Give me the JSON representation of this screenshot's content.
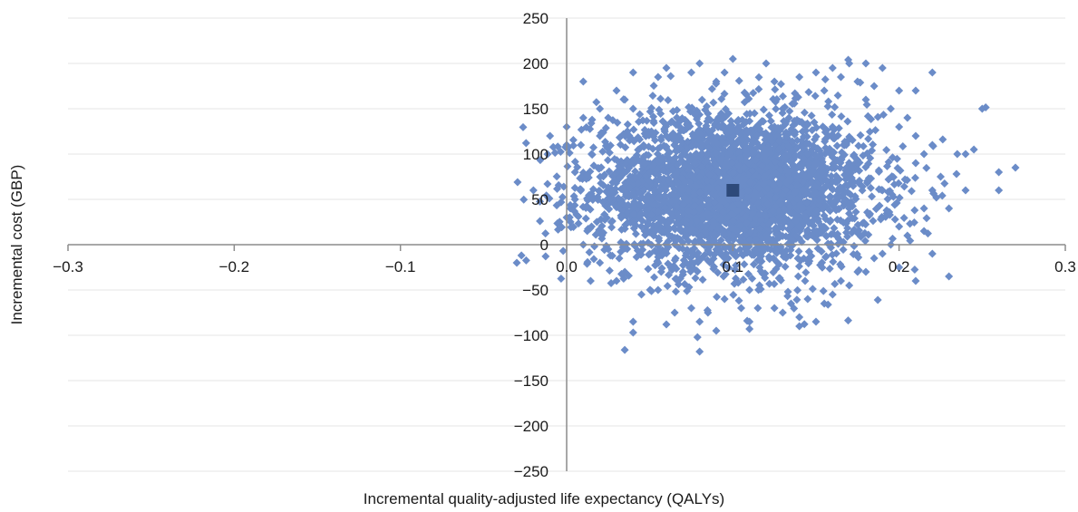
{
  "chart_data": {
    "type": "scatter",
    "title": "",
    "xlabel": "Incremental quality-adjusted life expectancy (QALYs)",
    "ylabel": "Incremental cost (GBP)",
    "xlim": [
      -0.3,
      0.3
    ],
    "ylim": [
      -250,
      250
    ],
    "x_ticks": [
      -0.3,
      -0.2,
      -0.1,
      0.0,
      0.1,
      0.2,
      0.3
    ],
    "x_tick_labels": [
      "−0.3",
      "−0.2",
      "−0.1",
      "0.0",
      "0.1",
      "0.2",
      "0.3"
    ],
    "y_ticks": [
      250,
      200,
      150,
      100,
      50,
      0,
      -50,
      -100,
      -150,
      -200,
      -250
    ],
    "y_tick_labels": [
      "250",
      "200",
      "150",
      "100",
      "50",
      "0",
      "−50",
      "−100",
      "−150",
      "−200",
      "−250"
    ],
    "grid": true,
    "legend": "none",
    "colors": {
      "simulations": "#6b8cc8",
      "mean": "#2e4a7a",
      "axis": "#8c8c8c",
      "grid": "#e6e6e6"
    },
    "series": [
      {
        "marker": "diamond",
        "points": [
          [
            0.1,
            65
          ],
          [
            0.12,
            100
          ],
          [
            0.08,
            40
          ],
          [
            0.06,
            120
          ],
          [
            0.14,
            20
          ],
          [
            0.1,
            10
          ],
          [
            0.09,
            180
          ],
          [
            0.11,
            -50
          ],
          [
            0.13,
            150
          ],
          [
            0.07,
            -30
          ],
          [
            0.15,
            90
          ],
          [
            0.05,
            70
          ],
          [
            0.04,
            150
          ],
          [
            0.16,
            130
          ],
          [
            0.03,
            80
          ],
          [
            0.17,
            40
          ],
          [
            0.02,
            120
          ],
          [
            0.18,
            160
          ],
          [
            0.01,
            180
          ],
          [
            0.19,
            60
          ],
          [
            0.0,
            130
          ],
          [
            0.2,
            20
          ],
          [
            -0.01,
            120
          ],
          [
            0.21,
            90
          ],
          [
            -0.02,
            60
          ],
          [
            0.22,
            110
          ],
          [
            -0.03,
            -20
          ],
          [
            0.23,
            -35
          ],
          [
            0.24,
            100
          ],
          [
            0.25,
            150
          ],
          [
            0.26,
            80
          ],
          [
            0.27,
            85
          ],
          [
            0.26,
            60
          ],
          [
            0.24,
            60
          ],
          [
            0.23,
            40
          ],
          [
            0.22,
            190
          ],
          [
            0.21,
            170
          ],
          [
            0.2,
            170
          ],
          [
            0.19,
            195
          ],
          [
            0.18,
            200
          ],
          [
            0.17,
            200
          ],
          [
            0.16,
            195
          ],
          [
            0.15,
            190
          ],
          [
            0.14,
            185
          ],
          [
            0.12,
            200
          ],
          [
            0.1,
            205
          ],
          [
            0.08,
            200
          ],
          [
            0.06,
            195
          ],
          [
            0.04,
            190
          ],
          [
            0.03,
            170
          ],
          [
            0.02,
            150
          ],
          [
            0.01,
            140
          ],
          [
            0.0,
            110
          ],
          [
            0.0,
            30
          ],
          [
            0.01,
            0
          ],
          [
            0.02,
            -20
          ],
          [
            0.03,
            -40
          ],
          [
            0.04,
            -85
          ],
          [
            0.04,
            -97
          ],
          [
            0.06,
            -88
          ],
          [
            0.08,
            -85
          ],
          [
            0.08,
            -118
          ],
          [
            0.09,
            -95
          ],
          [
            0.11,
            -85
          ],
          [
            0.11,
            -93
          ],
          [
            0.13,
            -75
          ],
          [
            0.14,
            -80
          ],
          [
            0.14,
            -90
          ],
          [
            0.15,
            -85
          ],
          [
            0.16,
            -55
          ],
          [
            0.17,
            -45
          ],
          [
            0.18,
            -30
          ],
          [
            0.19,
            -10
          ],
          [
            0.2,
            -25
          ],
          [
            0.21,
            -40
          ],
          [
            0.22,
            -10
          ],
          [
            0.215,
            15
          ],
          [
            0.225,
            75
          ],
          [
            0.235,
            100
          ],
          [
            0.245,
            105
          ],
          [
            0.205,
            140
          ],
          [
            0.195,
            150
          ],
          [
            0.185,
            175
          ],
          [
            0.175,
            180
          ],
          [
            0.165,
            185
          ],
          [
            0.155,
            170
          ],
          [
            0.125,
            180
          ],
          [
            0.095,
            190
          ],
          [
            0.075,
            190
          ],
          [
            0.055,
            185
          ],
          [
            0.035,
            160
          ],
          [
            0.025,
            140
          ],
          [
            0.015,
            100
          ],
          [
            0.005,
            80
          ],
          [
            0.005,
            50
          ],
          [
            0.015,
            20
          ],
          [
            0.025,
            -5
          ],
          [
            0.035,
            -30
          ],
          [
            0.045,
            -55
          ],
          [
            0.055,
            -50
          ],
          [
            0.065,
            -75
          ],
          [
            0.075,
            -70
          ],
          [
            0.085,
            -75
          ],
          [
            0.095,
            -60
          ],
          [
            0.105,
            -70
          ],
          [
            0.115,
            -70
          ],
          [
            0.125,
            -70
          ],
          [
            0.135,
            -65
          ],
          [
            0.145,
            -60
          ],
          [
            0.155,
            -65
          ],
          [
            0.165,
            -40
          ],
          [
            0.175,
            -30
          ],
          [
            0.185,
            -15
          ],
          [
            0.195,
            0
          ],
          [
            0.205,
            10
          ],
          [
            0.215,
            40
          ],
          [
            0.22,
            60
          ],
          [
            0.215,
            100
          ],
          [
            0.21,
            120
          ],
          [
            0.2,
            130
          ]
        ]
      }
    ],
    "mean_point": {
      "marker": "square",
      "x": 0.1,
      "y": 60
    }
  }
}
